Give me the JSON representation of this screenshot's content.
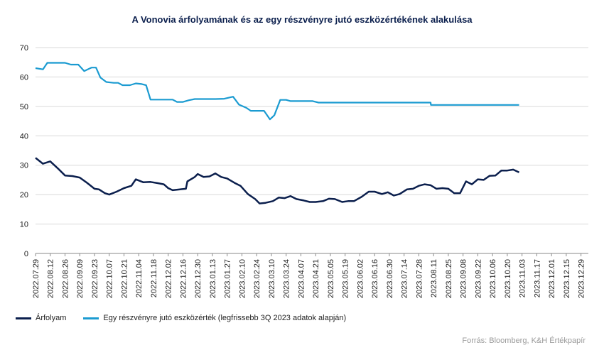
{
  "chart_data": {
    "type": "line",
    "title": "A Vonovia árfolyamának és az egy részvényre jutó eszközértékének alakulása",
    "source": "Forrás: Bloomberg, K&H Értékpapír",
    "ylim": [
      0,
      70
    ],
    "yticks": [
      0,
      10,
      20,
      30,
      40,
      50,
      60,
      70
    ],
    "grid": true,
    "legend_position": "bottom-left",
    "x_tick_labels": [
      "2022.07.29",
      "2022.08.12",
      "2022.08.26",
      "2022.09.09",
      "2022.09.23",
      "2022.10.07",
      "2022.10.21",
      "2022.11.04",
      "2022.11.18",
      "2022.12.02",
      "2022.12.16",
      "2022.12.30",
      "2023.01.13",
      "2023.01.27",
      "2023.02.10",
      "2023.02.24",
      "2023.03.10",
      "2023.03.24",
      "2023.04.07",
      "2023.04.21",
      "2023.05.05",
      "2023.05.19",
      "2023.06.02",
      "2023.06.16",
      "2023.06.30",
      "2023.07.14",
      "2023.07.28",
      "2023.08.11",
      "2023.08.25",
      "2023.09.08",
      "2023.09.22",
      "2023.10.06",
      "2023.10.20",
      "2023.11.03",
      "2023.11.17",
      "2023.12.01",
      "2023.12.15",
      "2023.12.29"
    ],
    "series": [
      {
        "name": "Árfolyam",
        "color": "#0b1f4d",
        "points": [
          [
            0,
            32.5
          ],
          [
            0.5,
            30.5
          ],
          [
            1,
            31.3
          ],
          [
            1.5,
            29
          ],
          [
            2,
            26.5
          ],
          [
            2.5,
            26.3
          ],
          [
            3,
            25.8
          ],
          [
            3.5,
            24
          ],
          [
            4,
            22
          ],
          [
            4.3,
            21.8
          ],
          [
            4.7,
            20.5
          ],
          [
            5,
            20
          ],
          [
            5.5,
            21
          ],
          [
            6,
            22.2
          ],
          [
            6.5,
            23
          ],
          [
            6.8,
            25.2
          ],
          [
            7.3,
            24.2
          ],
          [
            7.8,
            24.3
          ],
          [
            8.3,
            23.9
          ],
          [
            8.7,
            23.5
          ],
          [
            9,
            22.2
          ],
          [
            9.3,
            21.5
          ],
          [
            9.8,
            21.8
          ],
          [
            10.2,
            22
          ],
          [
            10.3,
            24.5
          ],
          [
            10.8,
            26
          ],
          [
            11,
            27
          ],
          [
            11.4,
            26
          ],
          [
            11.8,
            26.2
          ],
          [
            12.2,
            27.2
          ],
          [
            12.6,
            26
          ],
          [
            13,
            25.5
          ],
          [
            13.5,
            24
          ],
          [
            13.9,
            23
          ],
          [
            14.4,
            20.2
          ],
          [
            14.9,
            18.5
          ],
          [
            15.2,
            17
          ],
          [
            15.6,
            17.2
          ],
          [
            16.1,
            17.8
          ],
          [
            16.5,
            19
          ],
          [
            16.9,
            18.8
          ],
          [
            17.3,
            19.5
          ],
          [
            17.7,
            18.5
          ],
          [
            18.2,
            18
          ],
          [
            18.6,
            17.5
          ],
          [
            19,
            17.5
          ],
          [
            19.5,
            17.8
          ],
          [
            19.9,
            18.6
          ],
          [
            20.3,
            18.5
          ],
          [
            20.8,
            17.5
          ],
          [
            21.2,
            17.8
          ],
          [
            21.6,
            17.8
          ],
          [
            22.1,
            19.2
          ],
          [
            22.6,
            21
          ],
          [
            23,
            21
          ],
          [
            23.5,
            20.2
          ],
          [
            23.9,
            20.8
          ],
          [
            24.3,
            19.7
          ],
          [
            24.7,
            20.2
          ],
          [
            25.2,
            21.8
          ],
          [
            25.6,
            22
          ],
          [
            26,
            23
          ],
          [
            26.4,
            23.5
          ],
          [
            26.8,
            23.2
          ],
          [
            27.2,
            22
          ],
          [
            27.6,
            22.2
          ],
          [
            28,
            22
          ],
          [
            28.4,
            20.5
          ],
          [
            28.8,
            20.5
          ],
          [
            29.2,
            24.5
          ],
          [
            29.6,
            23.5
          ],
          [
            30,
            25.2
          ],
          [
            30.4,
            25
          ],
          [
            30.8,
            26.4
          ],
          [
            31.2,
            26.5
          ],
          [
            31.6,
            28.2
          ],
          [
            32,
            28.2
          ],
          [
            32.4,
            28.5
          ],
          [
            32.8,
            27.6
          ]
        ]
      },
      {
        "name": "Egy részvényre jutó eszközérték (legfrissebb 3Q 2023 adatok alapján)",
        "color": "#1b9bd1",
        "points": [
          [
            0,
            63
          ],
          [
            0.5,
            62.6
          ],
          [
            0.8,
            64.8
          ],
          [
            1.4,
            64.8
          ],
          [
            2,
            64.8
          ],
          [
            2.4,
            64.2
          ],
          [
            2.9,
            64.2
          ],
          [
            3.3,
            62
          ],
          [
            3.8,
            63.2
          ],
          [
            4.1,
            63.2
          ],
          [
            4.4,
            59.8
          ],
          [
            4.8,
            58.3
          ],
          [
            5.3,
            58
          ],
          [
            5.6,
            58
          ],
          [
            5.9,
            57.2
          ],
          [
            6.4,
            57.2
          ],
          [
            6.8,
            57.8
          ],
          [
            7.2,
            57.6
          ],
          [
            7.5,
            57.2
          ],
          [
            7.8,
            52.3
          ],
          [
            8.3,
            52.3
          ],
          [
            8.8,
            52.3
          ],
          [
            9.3,
            52.3
          ],
          [
            9.6,
            51.5
          ],
          [
            10,
            51.5
          ],
          [
            10.4,
            52.1
          ],
          [
            10.8,
            52.5
          ],
          [
            11.5,
            52.5
          ],
          [
            12.2,
            52.5
          ],
          [
            12.8,
            52.6
          ],
          [
            13.4,
            53.3
          ],
          [
            13.8,
            50.6
          ],
          [
            14.3,
            49.5
          ],
          [
            14.6,
            48.5
          ],
          [
            15.1,
            48.5
          ],
          [
            15.5,
            48.5
          ],
          [
            15.9,
            45.6
          ],
          [
            16.2,
            47
          ],
          [
            16.6,
            52.2
          ],
          [
            17,
            52.2
          ],
          [
            17.3,
            51.8
          ],
          [
            18,
            51.8
          ],
          [
            18.8,
            51.8
          ],
          [
            19.2,
            51.3
          ],
          [
            20,
            51.3
          ],
          [
            21,
            51.3
          ],
          [
            22,
            51.3
          ],
          [
            23,
            51.3
          ],
          [
            24,
            51.3
          ],
          [
            25,
            51.3
          ],
          [
            26,
            51.3
          ],
          [
            26.8,
            51.3
          ],
          [
            26.82,
            50.5
          ],
          [
            28,
            50.5
          ],
          [
            29,
            50.5
          ],
          [
            30,
            50.5
          ],
          [
            31,
            50.5
          ],
          [
            32,
            50.5
          ],
          [
            32.8,
            50.5
          ]
        ]
      }
    ]
  }
}
